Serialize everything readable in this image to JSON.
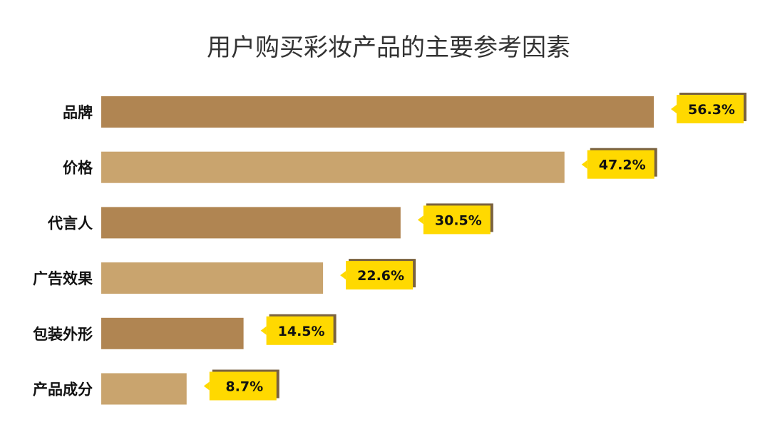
{
  "chart_data": {
    "type": "bar",
    "orientation": "horizontal",
    "title": "用户购买彩妆产品的主要参考因素",
    "categories": [
      "品牌",
      "价格",
      "代言人",
      "广告效果",
      "包装外形",
      "产品成分"
    ],
    "values": [
      56.3,
      47.2,
      30.5,
      22.6,
      14.5,
      8.7
    ],
    "value_labels": [
      "56.3%",
      "47.2%",
      "30.5%",
      "22.6%",
      "14.5%",
      "8.7%"
    ],
    "unit": "%",
    "bar_colors": [
      "#B08552",
      "#C9A46E"
    ],
    "label_color": "#FFD900",
    "label_shadow_color": "#7A6240",
    "xlim": [
      0,
      56.3
    ],
    "xlabel": "",
    "ylabel": "",
    "grid": false,
    "legend": "none"
  }
}
